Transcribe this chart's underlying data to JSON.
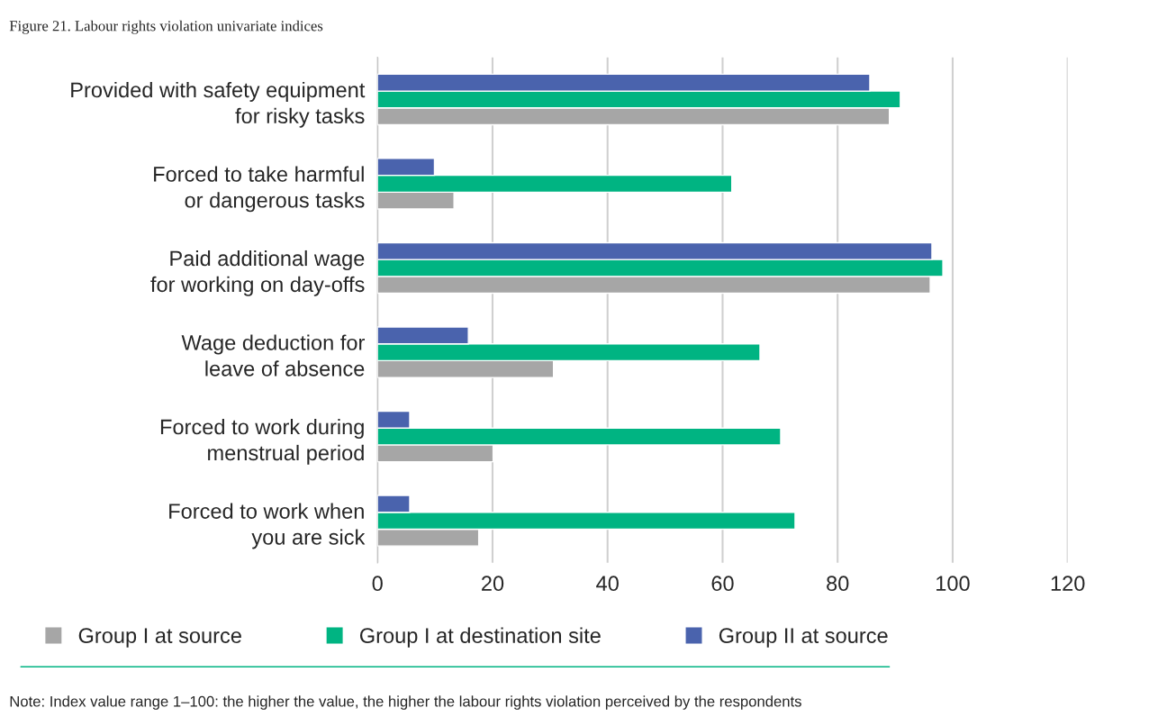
{
  "chart_data": {
    "type": "bar",
    "orientation": "horizontal",
    "title": "Figure 21. Labour rights violation univariate indices",
    "categories": [
      "Provided with safety equipment\nfor risky tasks",
      "Forced to take harmful\nor dangerous tasks",
      "Paid additional wage\nfor working on day-offs",
      "Wage deduction for\nleave of absence",
      "Forced to work during\nmenstrual period",
      "Forced to work when\nyou are sick"
    ],
    "series": [
      {
        "name": "Group I at source",
        "color": "#a6a6a6",
        "values": [
          89.0,
          13.3,
          96.1,
          30.6,
          20.1,
          17.6
        ]
      },
      {
        "name": "Group I at destination site",
        "color": "#00b482",
        "values": [
          90.9,
          61.6,
          98.3,
          66.5,
          70.1,
          72.6
        ]
      },
      {
        "name": "Group II at source",
        "color": "#4a63ad",
        "values": [
          85.6,
          9.9,
          96.4,
          15.8,
          5.6,
          5.6
        ]
      }
    ],
    "xlim": [
      0,
      120
    ],
    "xticks": [
      0,
      20,
      40,
      60,
      80,
      100,
      120
    ],
    "grid": "x",
    "legend": "bottom",
    "annotations": [
      "Note: Index value range 1–100: the higher the value, the higher the labour rights violation perceived by the respondents"
    ]
  }
}
